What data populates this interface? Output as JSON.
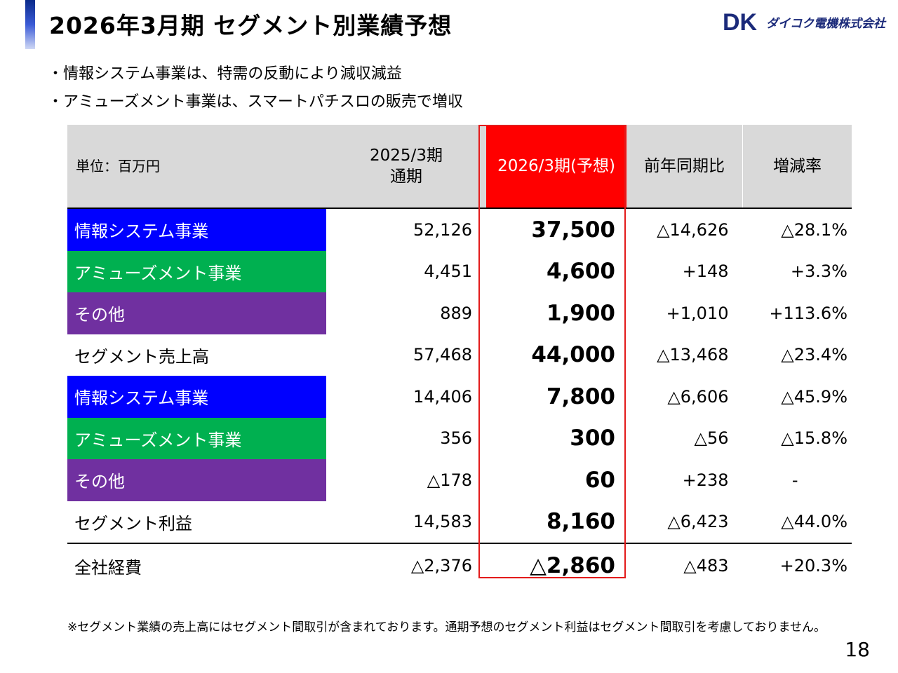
{
  "title": "2026年3月期  セグメント別業績予想",
  "logo": {
    "mark": "DK",
    "name": "ダイコク電機株式会社",
    "color": "#1b2a7a"
  },
  "bullets": [
    "情報システム事業は、特需の反動により減収減益",
    "アミューズメント事業は、スマートパチスロの販売で増収"
  ],
  "table": {
    "headers": {
      "unit": "単位：百万円",
      "prev_line1": "2025/3期",
      "prev_line2": "通期",
      "fcst": "2026/3期(予想)",
      "yoy": "前年同期比",
      "rate": "増減率"
    },
    "rows": [
      {
        "label": "情報システム事業",
        "prev": "52,126",
        "fcst": "37,500",
        "yoy": "△14,626",
        "rate": "△28.1%",
        "color": "#0000ff"
      },
      {
        "label": "アミューズメント事業",
        "prev": "4,451",
        "fcst": "4,600",
        "yoy": "+148",
        "rate": "+3.3%",
        "color": "#00b050"
      },
      {
        "label": "その他",
        "prev": "889",
        "fcst": "1,900",
        "yoy": "+1,010",
        "rate": "+113.6%",
        "color": "#7030a0"
      },
      {
        "label": "セグメント売上高",
        "prev": "57,468",
        "fcst": "44,000",
        "yoy": "△13,468",
        "rate": "△23.4%"
      },
      {
        "label": "情報システム事業",
        "prev": "14,406",
        "fcst": "7,800",
        "yoy": "△6,606",
        "rate": "△45.9%",
        "color": "#0000ff"
      },
      {
        "label": "アミューズメント事業",
        "prev": "356",
        "fcst": "300",
        "yoy": "△56",
        "rate": "△15.8%",
        "color": "#00b050"
      },
      {
        "label": "その他",
        "prev": "△178",
        "fcst": "60",
        "yoy": "+238",
        "rate": "-",
        "color": "#7030a0"
      },
      {
        "label": "セグメント利益",
        "prev": "14,583",
        "fcst": "8,160",
        "yoy": "△6,423",
        "rate": "△44.0%"
      },
      {
        "label": "全社経費",
        "prev": "△2,376",
        "fcst": "△2,860",
        "yoy": "△483",
        "rate": "+20.3%"
      }
    ]
  },
  "highlight_color": "#ff0000",
  "note": "※セグメント業績の売上高にはセグメント間取引が含まれております。通期予想のセグメント利益はセグメント間取引を考慮しておりません。",
  "page_number": "18"
}
